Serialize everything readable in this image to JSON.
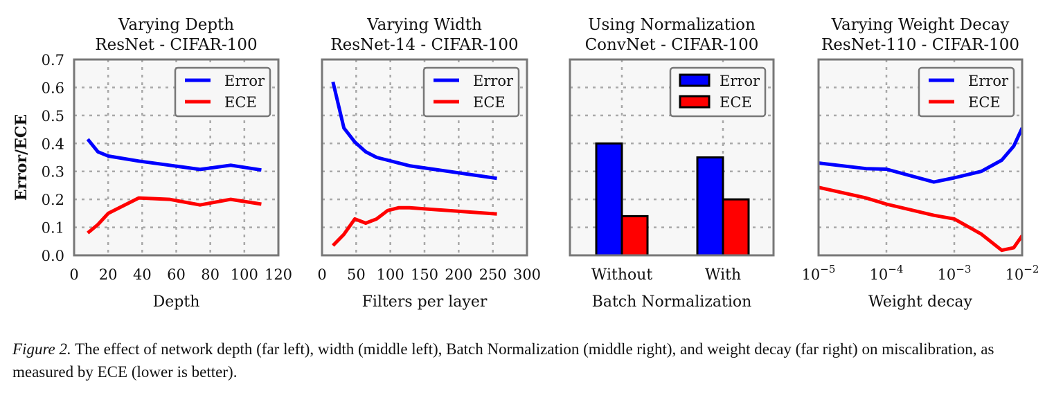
{
  "chart_data": [
    {
      "type": "line",
      "title": [
        "Varying Depth",
        "ResNet - CIFAR-100"
      ],
      "xlabel": "Depth",
      "ylabel": "Error/ECE",
      "xscale": "linear",
      "xlim": [
        0,
        120
      ],
      "ylim": [
        0,
        0.7
      ],
      "xticks": [
        0,
        20,
        40,
        60,
        80,
        100,
        120
      ],
      "xtick_labels": [
        "0",
        "20",
        "40",
        "60",
        "80",
        "100",
        "120"
      ],
      "yticks": [
        0.0,
        0.1,
        0.2,
        0.3,
        0.4,
        0.5,
        0.6,
        0.7
      ],
      "ytick_labels": [
        "0.0",
        "0.1",
        "0.2",
        "0.3",
        "0.4",
        "0.5",
        "0.6",
        "0.7"
      ],
      "grid": true,
      "legend": "top-right",
      "series": [
        {
          "name": "Error",
          "color": "#0000ff",
          "x": [
            8,
            14,
            20,
            38,
            56,
            74,
            92,
            110
          ],
          "y": [
            0.415,
            0.37,
            0.355,
            0.337,
            0.322,
            0.307,
            0.322,
            0.305
          ]
        },
        {
          "name": "ECE",
          "color": "#ff0000",
          "x": [
            8,
            14,
            20,
            38,
            56,
            74,
            92,
            110
          ],
          "y": [
            0.08,
            0.11,
            0.15,
            0.205,
            0.2,
            0.18,
            0.2,
            0.183
          ]
        }
      ]
    },
    {
      "type": "line",
      "title": [
        "Varying Width",
        "ResNet-14 - CIFAR-100"
      ],
      "xlabel": "Filters per layer",
      "ylabel": "",
      "xscale": "linear",
      "xlim": [
        0,
        300
      ],
      "ylim": [
        0,
        0.7
      ],
      "xticks": [
        0,
        50,
        100,
        150,
        200,
        250,
        300
      ],
      "xtick_labels": [
        "0",
        "50",
        "100",
        "150",
        "200",
        "250",
        "300"
      ],
      "yticks": [
        0.0,
        0.1,
        0.2,
        0.3,
        0.4,
        0.5,
        0.6,
        0.7
      ],
      "ytick_labels": [],
      "grid": true,
      "legend": "top-right",
      "series": [
        {
          "name": "Error",
          "color": "#0000ff",
          "x": [
            16,
            32,
            48,
            64,
            80,
            96,
            112,
            128,
            256
          ],
          "y": [
            0.62,
            0.455,
            0.405,
            0.37,
            0.35,
            0.34,
            0.33,
            0.32,
            0.275
          ]
        },
        {
          "name": "ECE",
          "color": "#ff0000",
          "x": [
            16,
            32,
            48,
            64,
            80,
            96,
            112,
            128,
            256
          ],
          "y": [
            0.035,
            0.075,
            0.13,
            0.115,
            0.13,
            0.16,
            0.17,
            0.17,
            0.148
          ]
        }
      ]
    },
    {
      "type": "bar",
      "title": [
        "Using Normalization",
        "ConvNet - CIFAR-100"
      ],
      "xlabel": "Batch Normalization",
      "ylabel": "",
      "categories": [
        "Without",
        "With"
      ],
      "ylim": [
        0,
        0.7
      ],
      "yticks": [
        0.0,
        0.1,
        0.2,
        0.3,
        0.4,
        0.5,
        0.6,
        0.7
      ],
      "ytick_labels": [],
      "grid": true,
      "legend": "top-right",
      "series": [
        {
          "name": "Error",
          "color": "#0000ff",
          "values": [
            0.4,
            0.35
          ]
        },
        {
          "name": "ECE",
          "color": "#ff0000",
          "values": [
            0.14,
            0.2
          ]
        }
      ]
    },
    {
      "type": "line",
      "title": [
        "Varying Weight Decay",
        "ResNet-110 - CIFAR-100"
      ],
      "xlabel": "Weight decay",
      "ylabel": "",
      "xscale": "log",
      "xlim": [
        1e-05,
        0.01
      ],
      "ylim": [
        0,
        0.7
      ],
      "xticks": [
        1e-05,
        0.0001,
        0.001,
        0.01
      ],
      "xtick_labels": [
        {
          "base": "10",
          "exp": "−5"
        },
        {
          "base": "10",
          "exp": "−4"
        },
        {
          "base": "10",
          "exp": "−3"
        },
        {
          "base": "10",
          "exp": "−2"
        }
      ],
      "yticks": [
        0.0,
        0.1,
        0.2,
        0.3,
        0.4,
        0.5,
        0.6,
        0.7
      ],
      "ytick_labels": [],
      "grid": true,
      "legend": "top-right",
      "series": [
        {
          "name": "Error",
          "color": "#0000ff",
          "x": [
            1e-05,
            5e-05,
            0.0001,
            0.0005,
            0.001,
            0.0025,
            0.005,
            0.0075,
            0.01
          ],
          "y": [
            0.33,
            0.31,
            0.308,
            0.262,
            0.277,
            0.3,
            0.34,
            0.39,
            0.455
          ]
        },
        {
          "name": "ECE",
          "color": "#ff0000",
          "x": [
            1e-05,
            5e-05,
            0.0001,
            0.0005,
            0.001,
            0.0025,
            0.005,
            0.0075,
            0.01
          ],
          "y": [
            0.243,
            0.205,
            0.183,
            0.143,
            0.13,
            0.076,
            0.018,
            0.027,
            0.07
          ]
        }
      ]
    }
  ],
  "caption": {
    "label": "Figure 2.",
    "text": " The effect of network depth (far left), width (middle left), Batch Normalization (middle right), and weight decay (far right) on miscalibration, as measured by ECE (lower is better)."
  }
}
